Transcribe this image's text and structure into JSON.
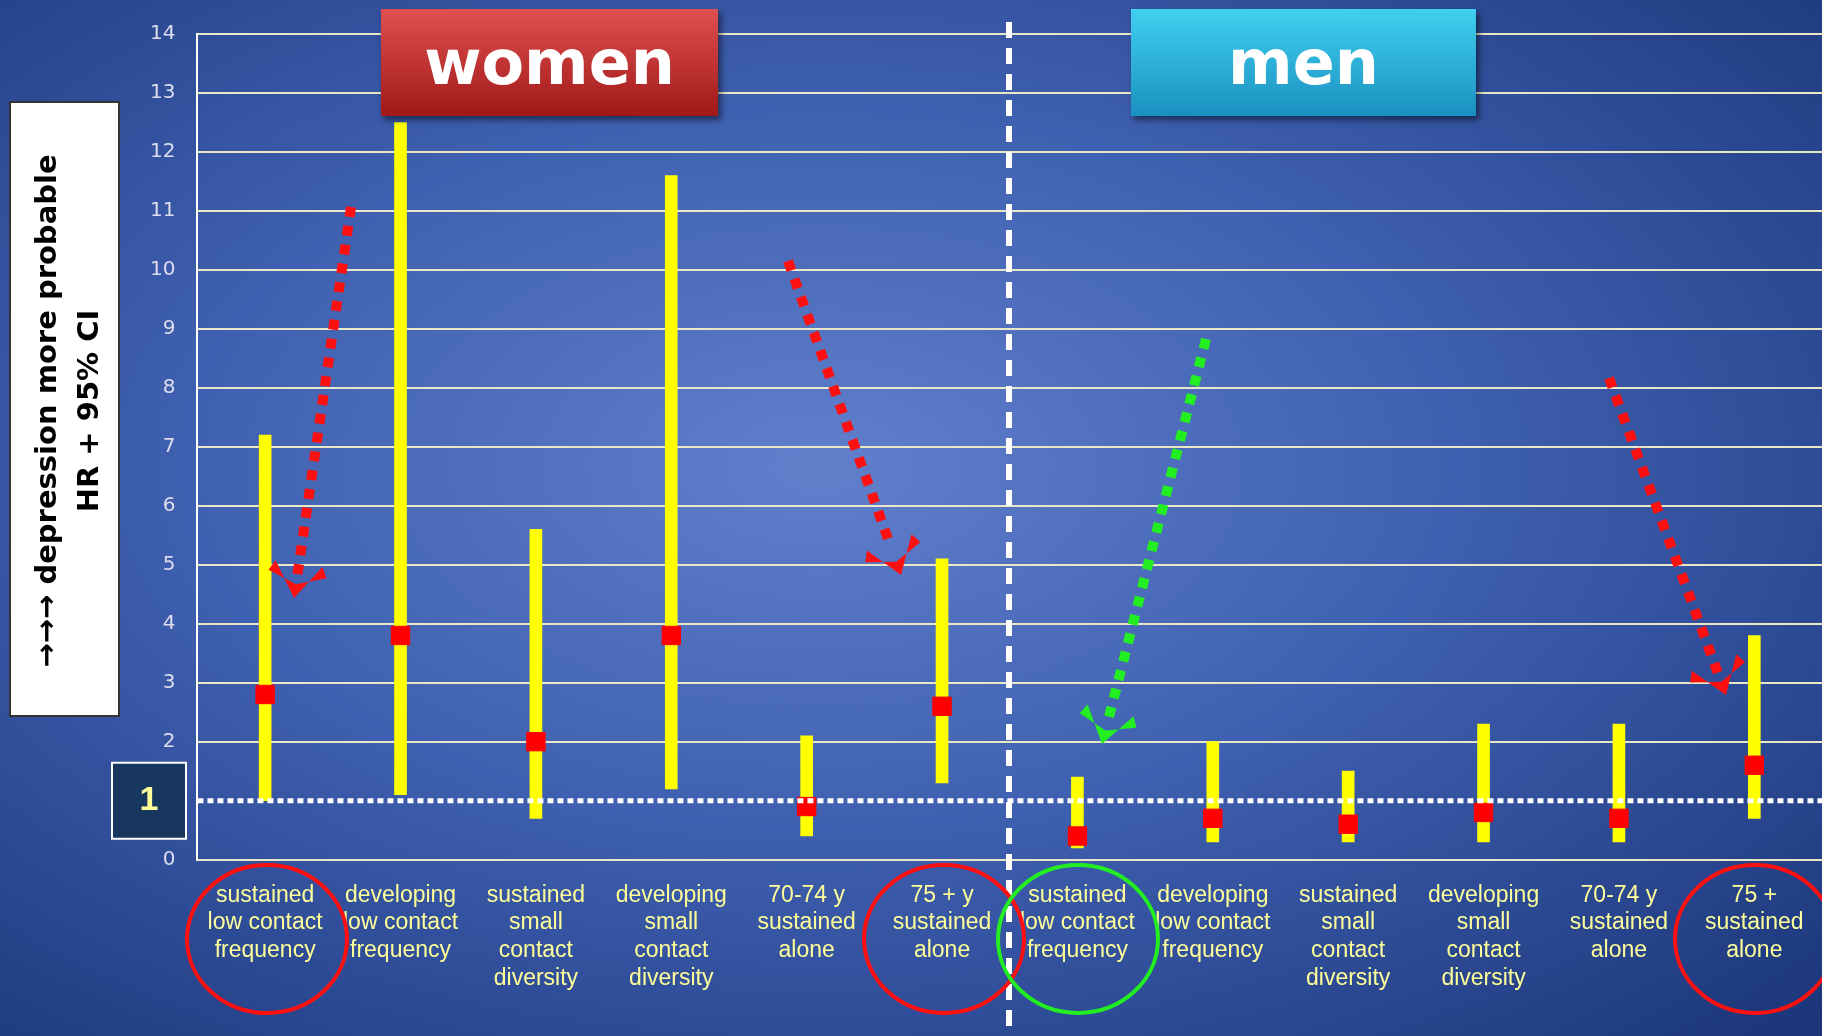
{
  "chart_data": {
    "type": "bar",
    "ylabel": "→→→ depression more probable\nHR  +  95% CI",
    "categories": [
      "sustained\nlow contact\nfrequency",
      "developing\nlow contact\nfrequency",
      "sustained\nsmall\ncontact\ndiversity",
      "developing\nsmall\ncontact\ndiversity",
      "70-74 y\nsustained\nalone",
      "75 + y\nsustained\nalone",
      "sustained\nlow contact\nfrequency",
      "developing\nlow contact\nfrequency",
      "sustained\nsmall\ncontact\ndiversity",
      "developing\nsmall\ncontact\ndiversity",
      "70-74 y\nsustained\nalone",
      "75 +\nsustained\nalone"
    ],
    "series": [
      {
        "color": "#ffff00",
        "base": [
          1.0,
          1.1,
          0.7,
          1.2,
          0.4,
          1.3,
          0.2,
          0.3,
          0.3,
          0.3,
          0.3,
          0.7
        ],
        "values": [
          6.2,
          11.4,
          4.9,
          10.4,
          1.7,
          3.8,
          1.2,
          1.7,
          1.2,
          2.0,
          2.0,
          3.1
        ]
      },
      {
        "type": "scatter",
        "color": "#ff0000",
        "marker": "square",
        "values": [
          2.8,
          3.8,
          2.0,
          3.8,
          0.9,
          2.6,
          0.4,
          0.7,
          0.6,
          0.8,
          0.7,
          1.6
        ]
      }
    ],
    "ylim": [
      0,
      14
    ],
    "yticks": [
      0,
      2,
      3,
      4,
      5,
      6,
      7,
      8,
      9,
      10,
      11,
      12,
      13,
      14
    ],
    "grid": "y",
    "legend": false,
    "ref_lines": [
      {
        "axis": "y",
        "value": 1,
        "label": "1",
        "color": "#ffffff",
        "line_style": "dotted"
      }
    ],
    "annotations": [
      "women",
      "men"
    ]
  }
}
